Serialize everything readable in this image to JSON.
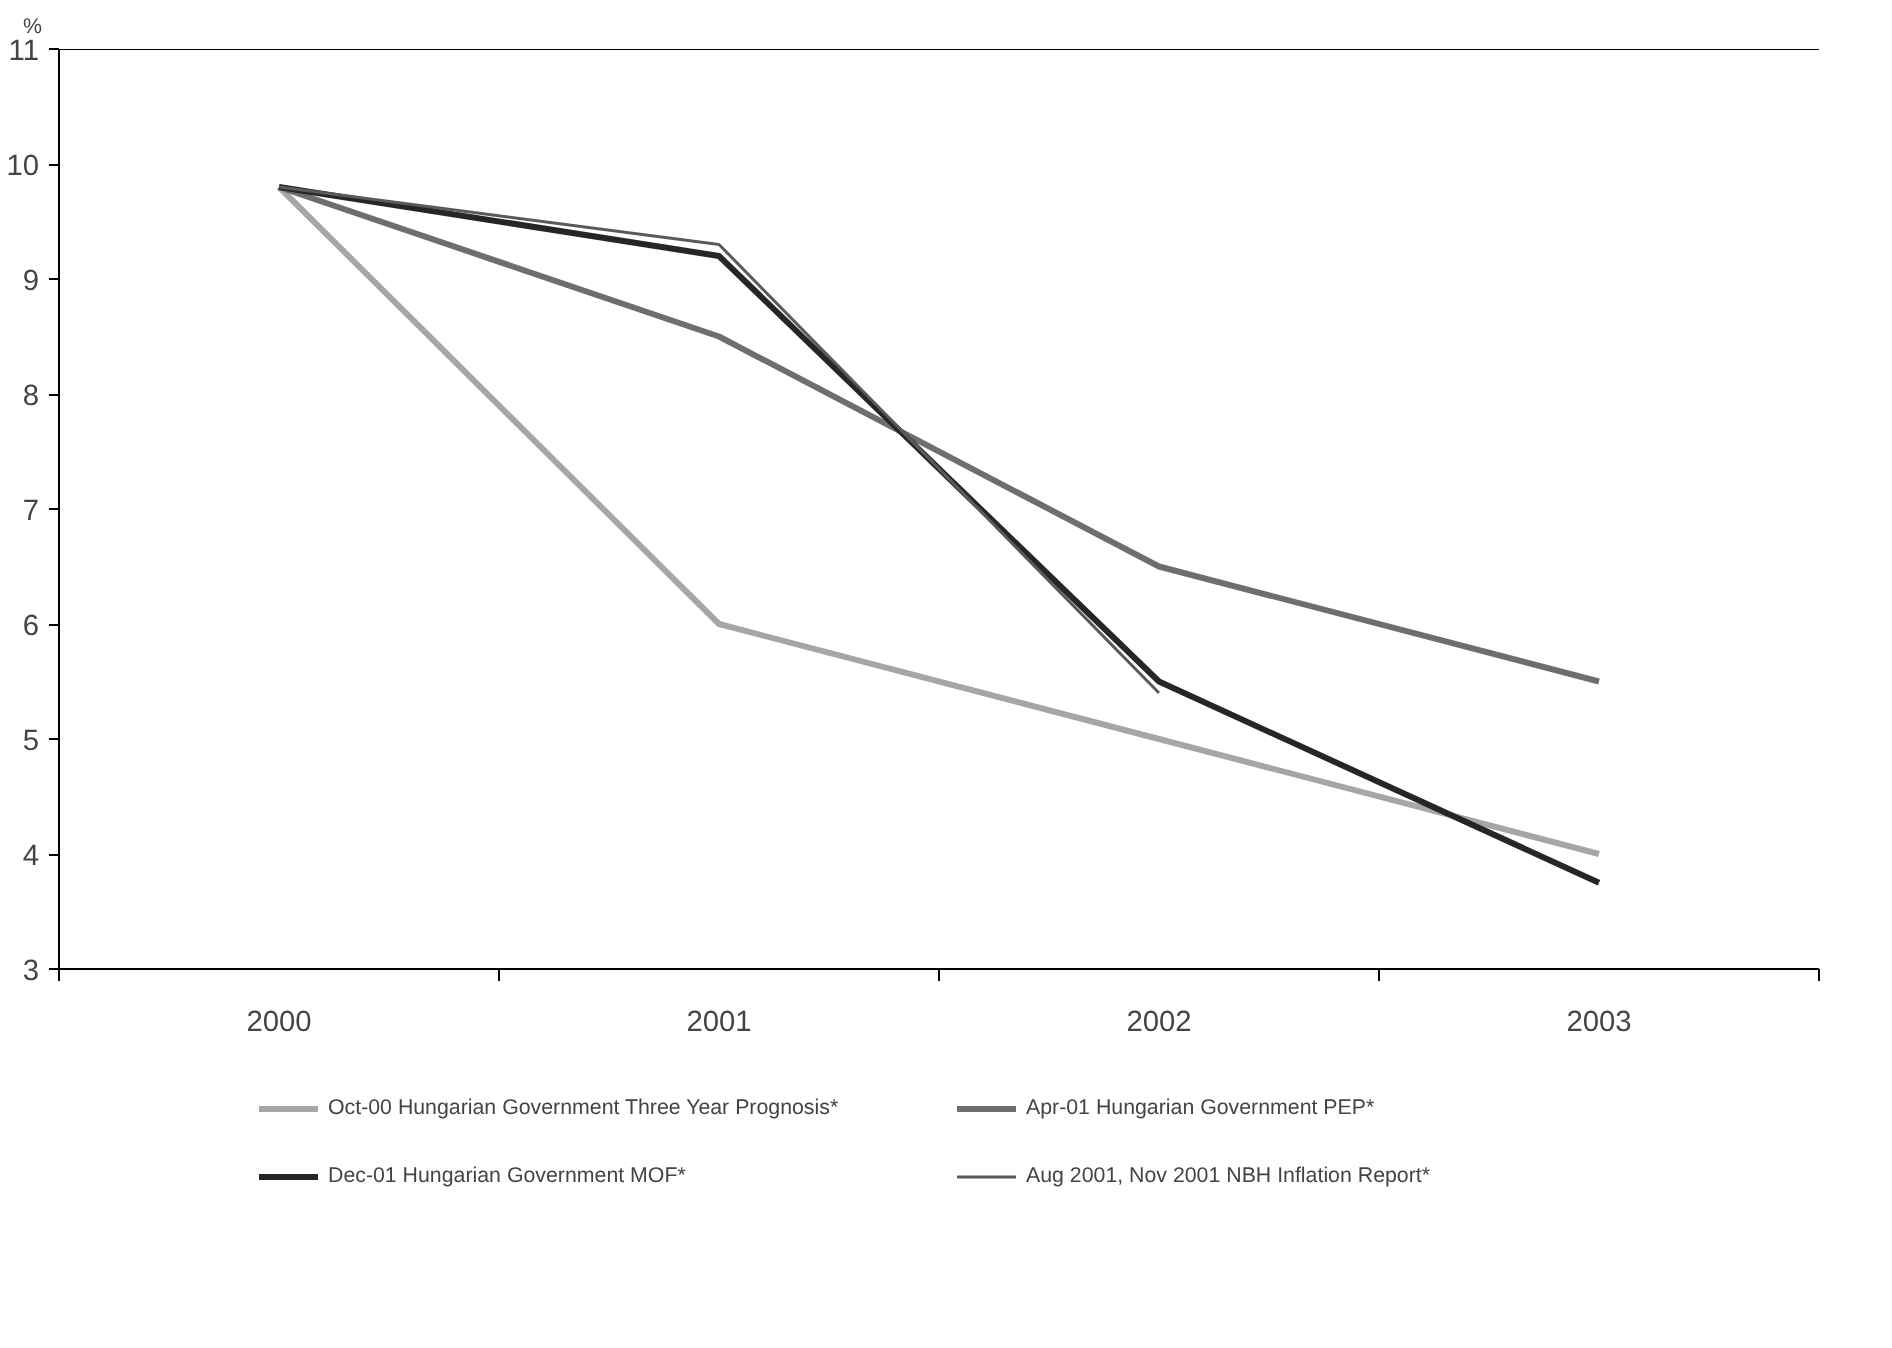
{
  "chart_data": {
    "type": "line",
    "ylabel": "%",
    "categories": [
      "2000",
      "2001",
      "2002",
      "2003"
    ],
    "ylim": [
      3,
      11
    ],
    "yticks": [
      3,
      4,
      5,
      6,
      7,
      8,
      9,
      10,
      11
    ],
    "grid": false,
    "legend": "bottom",
    "marker": "none",
    "line_style": "solid",
    "series": [
      {
        "name": "Oct-00 Hungarian Government Three Year Prognosis*",
        "color": "#a6a6a6",
        "values": [
          9.8,
          6.0,
          5.0,
          4.0
        ]
      },
      {
        "name": "Apr-01 Hungarian Government PEP*",
        "color": "#6e6e6e",
        "values": [
          9.8,
          8.5,
          6.5,
          5.5
        ]
      },
      {
        "name": "Dec-01 Hungarian Government MOF*",
        "color": "#262626",
        "values": [
          9.8,
          9.2,
          5.5,
          3.75
        ]
      },
      {
        "name": "Aug 2001, Nov 2001 NBH Inflation Report*",
        "color": "#5a5a5a",
        "values": [
          9.8,
          9.3,
          5.4,
          null
        ]
      }
    ]
  }
}
